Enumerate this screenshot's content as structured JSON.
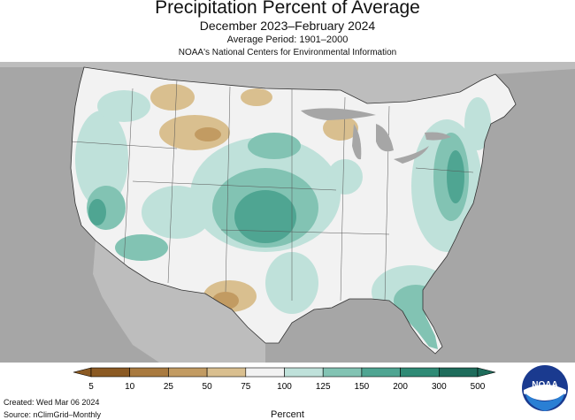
{
  "title": "Precipitation Percent of Average",
  "subtitle": "December 2023–February 2024",
  "period": "Average Period: 1901–2000",
  "source_org": "NOAA's National Centers for Environmental Information",
  "legend": {
    "title": "Percent",
    "ticks": [
      "5",
      "10",
      "25",
      "50",
      "75",
      "100",
      "125",
      "150",
      "200",
      "300",
      "500"
    ],
    "colors": [
      "#8b5a23",
      "#a97a3f",
      "#c29b62",
      "#d9bf8f",
      "#f2f2f2",
      "#f2f2f2",
      "#bfe1da",
      "#82c3b3",
      "#4fa592",
      "#2f8a75",
      "#1e6c5b"
    ]
  },
  "footer": {
    "created": "Created: Wed Mar 06 2024",
    "source": "Source: nClimGrid–Monthly"
  },
  "logo": {
    "text": "NOAA"
  },
  "colors": {
    "background_map": "#a6a6a6",
    "land_default": "#f2f2f2",
    "dry_strong": "#b58a4f",
    "dry_light": "#d9bf8f",
    "wet_light": "#bfe1da",
    "wet_medium": "#82c3b3",
    "wet_strong": "#4fa592"
  }
}
